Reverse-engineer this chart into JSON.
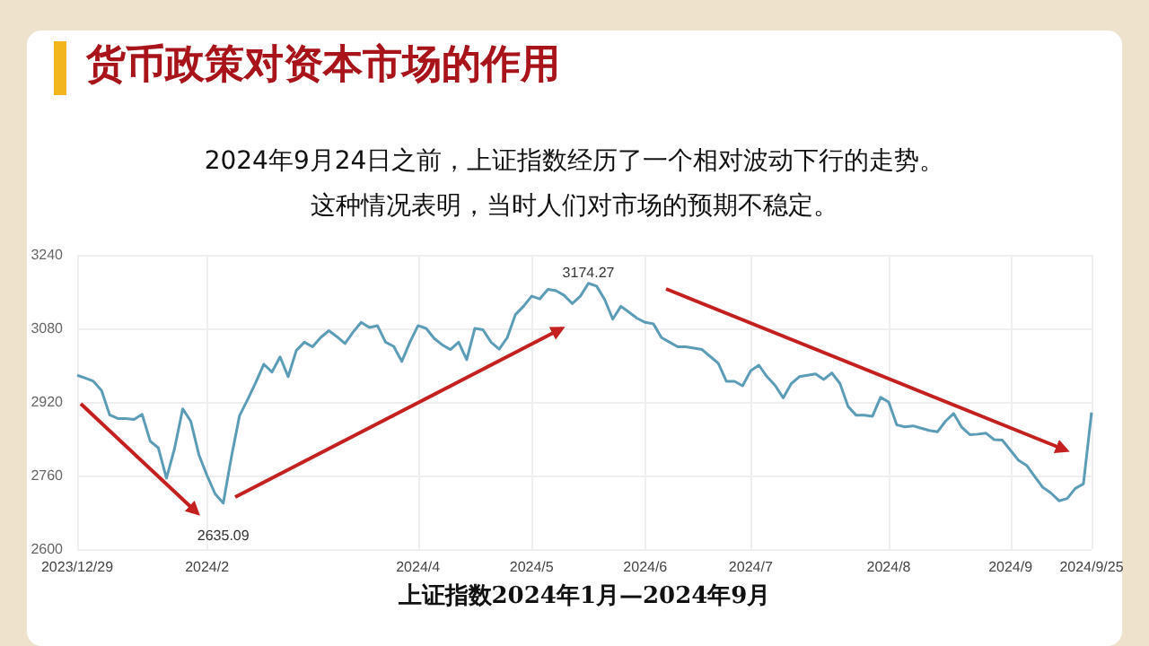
{
  "chart_data": {
    "type": "line",
    "title": "货币政策对资本市场的作用",
    "subtitle": "2024年9月24日之前，上证指数经历了一个相对波动下行的走势。",
    "xlabel": "上证指数2024年1月—2024年9月",
    "categories": [
      "2023/12/29",
      null,
      null,
      null,
      null,
      null,
      null,
      null,
      null,
      null,
      null,
      null,
      null,
      null,
      null,
      null,
      "2024/2",
      null,
      null,
      null,
      null,
      null,
      null,
      null,
      null,
      null,
      null,
      null,
      null,
      null,
      null,
      null,
      null,
      null,
      null,
      null,
      null,
      null,
      null,
      null,
      null,
      null,
      "2024/4",
      null,
      null,
      null,
      null,
      null,
      null,
      null,
      null,
      null,
      null,
      null,
      null,
      null,
      "2024/5",
      null,
      null,
      null,
      null,
      null,
      null,
      null,
      null,
      null,
      null,
      null,
      null,
      null,
      "2024/6",
      null,
      null,
      null,
      null,
      null,
      null,
      null,
      null,
      null,
      null,
      null,
      null,
      "2024/7",
      null,
      null,
      null,
      null,
      null,
      null,
      null,
      null,
      null,
      null,
      null,
      null,
      null,
      null,
      null,
      null,
      "2024/8",
      null,
      null,
      null,
      null,
      null,
      null,
      null,
      null,
      null,
      null,
      null,
      null,
      null,
      null,
      "2024/9",
      null,
      null,
      null,
      null,
      null,
      null,
      null,
      null,
      null,
      "2024/9/25"
    ],
    "series": [
      {
        "color": "#5b9cb6",
        "values": [
          2978,
          2972,
          2965,
          2945,
          2892,
          2884,
          2884,
          2882,
          2893,
          2835,
          2820,
          2754,
          2819,
          2905,
          2878,
          2805,
          2760,
          2720,
          2700,
          2800,
          2890,
          2925,
          2962,
          3002,
          2985,
          3018,
          2975,
          3032,
          3050,
          3040,
          3060,
          3075,
          3062,
          3047,
          3072,
          3093,
          3082,
          3086,
          3050,
          3041,
          3008,
          3050,
          3086,
          3080,
          3058,
          3044,
          3034,
          3050,
          3012,
          3080,
          3077,
          3050,
          3035,
          3060,
          3110,
          3128,
          3150,
          3144,
          3165,
          3162,
          3152,
          3134,
          3150,
          3178,
          3172,
          3143,
          3100,
          3128,
          3115,
          3102,
          3093,
          3090,
          3060,
          3050,
          3040,
          3040,
          3037,
          3034,
          3019,
          3004,
          2965,
          2965,
          2955,
          2988,
          3000,
          2975,
          2956,
          2929,
          2960,
          2975,
          2978,
          2981,
          2969,
          2983,
          2960,
          2910,
          2891,
          2891,
          2889,
          2930,
          2920,
          2870,
          2866,
          2868,
          2863,
          2858,
          2855,
          2878,
          2895,
          2865,
          2849,
          2850,
          2852,
          2838,
          2837,
          2815,
          2793,
          2782,
          2758,
          2734,
          2722,
          2705,
          2710,
          2732,
          2742,
          2897
        ]
      }
    ],
    "ylim": [
      2600,
      3240
    ],
    "yticks": [
      2600,
      2760,
      2920,
      3080,
      3240
    ],
    "grid": true,
    "marker": "none",
    "line_style": "solid",
    "annotations": [
      "这种情况表明，当时人们对市场的预期不稳定。",
      "2635.09",
      "3174.27"
    ]
  }
}
